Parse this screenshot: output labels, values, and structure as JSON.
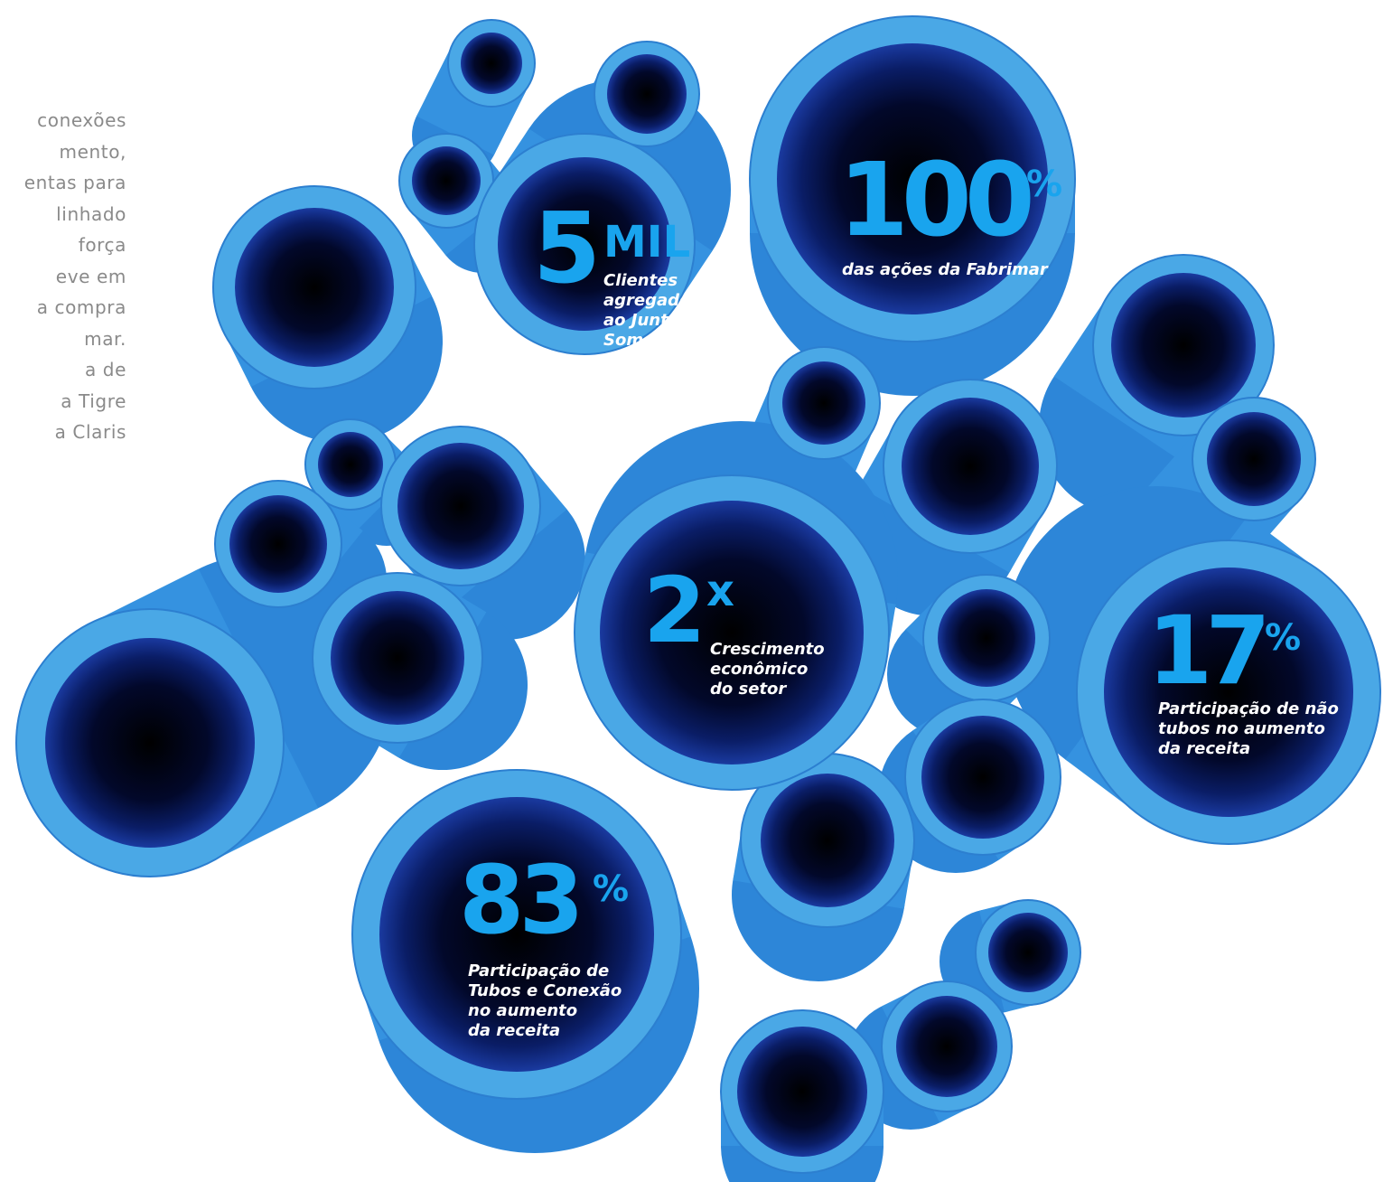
{
  "body_text_fragments": [
    "conexões",
    "mento,",
    "entas para",
    "linhado",
    "força",
    "eve em",
    "a compra",
    "mar.",
    "a de",
    "a Tigre",
    "a Claris"
  ],
  "stats": {
    "mil": {
      "value": "5",
      "unit": "MIL",
      "caption": [
        "Clientes",
        "agregados",
        "ao Juntos",
        "Somos +"
      ]
    },
    "fabrimar": {
      "value": "100",
      "unit": "%",
      "caption": [
        "das ações da Fabrimar"
      ]
    },
    "growth": {
      "value": "2",
      "unit": "x",
      "caption": [
        "Crescimento",
        "econômico",
        "do setor"
      ]
    },
    "non_tubes": {
      "value": "17",
      "unit": "%",
      "caption": [
        "Participação de não",
        "tubos no aumento",
        "da receita"
      ]
    },
    "tubes": {
      "value": "83",
      "unit": "%",
      "caption": [
        "Participação de",
        "Tubos e Conexão",
        "no aumento",
        "da receita"
      ]
    }
  },
  "colors": {
    "pipe_rim": "#4aa8e6",
    "pipe_inner": "#0a1a5c",
    "pipe_core": "#000000",
    "stat_accent": "#19a4ee",
    "caption": "#ffffff",
    "side_text": "#8a8a8a"
  }
}
